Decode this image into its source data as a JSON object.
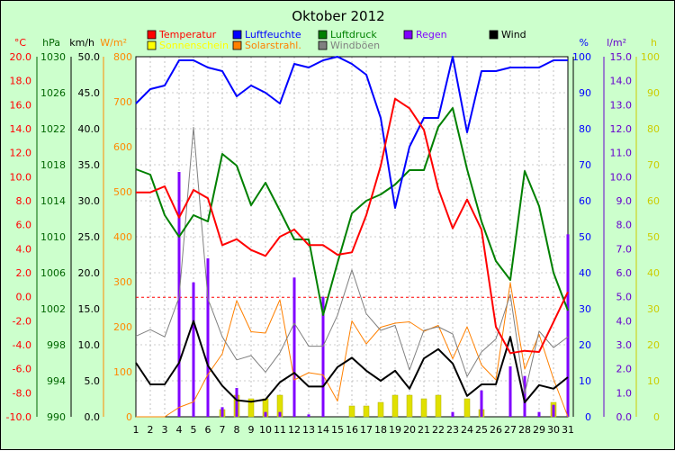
{
  "chart_data": {
    "type": "line",
    "title": "Oktober 2012",
    "x": [
      1,
      2,
      3,
      4,
      5,
      6,
      7,
      8,
      9,
      10,
      11,
      12,
      13,
      14,
      15,
      16,
      17,
      18,
      19,
      20,
      21,
      22,
      23,
      24,
      25,
      26,
      27,
      28,
      29,
      30,
      31
    ],
    "axes": {
      "temperature": {
        "unit": "°C",
        "min": -10,
        "max": 20,
        "ticks": [
          "20.0",
          "18.0",
          "16.0",
          "14.0",
          "12.0",
          "10.0",
          "8.0",
          "6.0",
          "4.0",
          "2.0",
          "0.0",
          "-2.0",
          "-4.0",
          "-6.0",
          "-8.0",
          "-10.0"
        ],
        "color": "#ff0000"
      },
      "pressure": {
        "unit": "hPa",
        "min": 990,
        "max": 1030,
        "ticks": [
          "1030",
          "1026",
          "1022",
          "1018",
          "1014",
          "1010",
          "1006",
          "1002",
          "998",
          "994",
          "990"
        ],
        "color": "#006600"
      },
      "wind": {
        "unit": "km/h",
        "min": 0,
        "max": 50,
        "ticks": [
          "50.0",
          "45.0",
          "40.0",
          "35.0",
          "30.0",
          "25.0",
          "20.0",
          "15.0",
          "10.0",
          "5.0",
          "0.0"
        ],
        "color": "#000000"
      },
      "radiation": {
        "unit": "W/m²",
        "min": 0,
        "max": 800,
        "ticks": [
          "800",
          "700",
          "600",
          "500",
          "400",
          "300",
          "200",
          "100",
          "0"
        ],
        "color": "#ff8800"
      },
      "humidity": {
        "unit": "%",
        "min": 0,
        "max": 100,
        "ticks": [
          "100",
          "90",
          "80",
          "70",
          "60",
          "50",
          "40",
          "30",
          "20",
          "10",
          "0"
        ],
        "color": "#0000ff"
      },
      "rain": {
        "unit": "l/m²",
        "min": 0,
        "max": 15,
        "ticks": [
          "15.0",
          "14.0",
          "13.0",
          "12.0",
          "11.0",
          "10.0",
          "9.0",
          "8.0",
          "7.0",
          "6.0",
          "5.0",
          "4.0",
          "3.0",
          "2.0",
          "1.0",
          "0.0"
        ],
        "color": "#6600cc"
      },
      "sunshine": {
        "unit": "h",
        "min": 0,
        "max": 100,
        "ticks": [
          "100",
          "90",
          "80",
          "70",
          "60",
          "50",
          "40",
          "30",
          "20",
          "10",
          "0"
        ],
        "color": "#cccc00"
      }
    },
    "legend": [
      {
        "label": "Temperatur",
        "color": "#ff0000"
      },
      {
        "label": "Luftfeuchte",
        "color": "#0000ff"
      },
      {
        "label": "Luftdruck",
        "color": "#008000"
      },
      {
        "label": "Regen",
        "color": "#8000ff"
      },
      {
        "label": "Wind",
        "color": "#000000"
      },
      {
        "label": "Sonnenschein",
        "color": "#ffff00"
      },
      {
        "label": "Solarstrahl.",
        "color": "#ff8000"
      },
      {
        "label": "Windböen",
        "color": "#808080"
      }
    ],
    "series": [
      {
        "name": "Temperatur",
        "axis": "temperature",
        "color": "#ff0000",
        "values": [
          8.7,
          8.7,
          9.2,
          6.6,
          8.9,
          8.2,
          4.3,
          4.8,
          3.9,
          3.4,
          5.0,
          5.6,
          4.3,
          4.3,
          3.5,
          3.7,
          6.8,
          10.9,
          16.5,
          15.7,
          13.9,
          9.0,
          5.7,
          8.1,
          5.6,
          -2.5,
          -4.7,
          -4.5,
          -4.6,
          -2.1,
          0.4
        ]
      },
      {
        "name": "Luftfeuchte",
        "axis": "humidity",
        "color": "#0000ff",
        "values": [
          87,
          91,
          92,
          99,
          99,
          97,
          96,
          89,
          92,
          90,
          87,
          98,
          97,
          99,
          100,
          98,
          95,
          83,
          58,
          75,
          83,
          83,
          100,
          79,
          96,
          96,
          97,
          97,
          97,
          99,
          99
        ]
      },
      {
        "name": "Luftdruck",
        "axis": "pressure",
        "color": "#008000",
        "values": [
          1017.5,
          1016.9,
          1012.4,
          1010.0,
          1012.4,
          1011.7,
          1019.2,
          1017.9,
          1013.5,
          1016.0,
          1012.9,
          1009.7,
          1009.7,
          1001.3,
          1007.1,
          1012.6,
          1014.0,
          1014.7,
          1015.8,
          1017.4,
          1017.4,
          1022.2,
          1024.3,
          1017.5,
          1011.7,
          1007.3,
          1005.2,
          1017.3,
          1013.4,
          1006.0,
          1001.8
        ]
      },
      {
        "name": "Wind",
        "axis": "wind",
        "color": "#000000",
        "values": [
          7.5,
          4.5,
          4.5,
          7.5,
          13.3,
          7.1,
          4.3,
          2.3,
          2.1,
          2.4,
          4.8,
          6.1,
          4.2,
          4.2,
          6.9,
          8.2,
          6.4,
          5.0,
          6.4,
          3.9,
          8.1,
          9.4,
          7.4,
          2.9,
          4.5,
          4.5,
          11.1,
          2.0,
          4.4,
          3.9,
          5.5
        ]
      },
      {
        "name": "Windböen",
        "axis": "wind",
        "color": "#808080",
        "values": [
          11.2,
          12.1,
          11.1,
          16.6,
          40.2,
          16.4,
          11.1,
          7.9,
          8.5,
          6.2,
          8.9,
          13.0,
          9.8,
          9.8,
          14.1,
          20.4,
          14.3,
          12.0,
          12.7,
          6.5,
          12.0,
          12.5,
          11.5,
          5.6,
          9.0,
          10.8,
          17.0,
          3.2,
          11.9,
          9.6,
          11.1
        ]
      },
      {
        "name": "Solarstrahl.",
        "axis": "radiation",
        "color": "#ff8000",
        "values": [
          0,
          0,
          0,
          21,
          33,
          94,
          140,
          258,
          189,
          186,
          260,
          82,
          98,
          93,
          35,
          213,
          162,
          199,
          208,
          211,
          190,
          203,
          129,
          200,
          115,
          82,
          298,
          106,
          183,
          84,
          0
        ]
      },
      {
        "name": "Regen",
        "axis": "rain",
        "type": "bar",
        "color": "#8000ff",
        "values": [
          0,
          0,
          0,
          10.2,
          5.6,
          6.6,
          0.4,
          1.2,
          0,
          0.2,
          0.2,
          5.8,
          0.1,
          5.0,
          0,
          0,
          0,
          0,
          0,
          0,
          0,
          0,
          0.2,
          0,
          1.1,
          0,
          2.1,
          1.7,
          0.2,
          0.5,
          7.6
        ]
      },
      {
        "name": "Sonnenschein",
        "axis": "sunshine",
        "type": "bar",
        "color": "#ffff00",
        "values": [
          0,
          0,
          0,
          0,
          0,
          0,
          2,
          6,
          5,
          5,
          6,
          0,
          0,
          0,
          0,
          3,
          3,
          4,
          6,
          6,
          5,
          6,
          0,
          5,
          2,
          0,
          0,
          0,
          0,
          4,
          0
        ]
      }
    ]
  }
}
